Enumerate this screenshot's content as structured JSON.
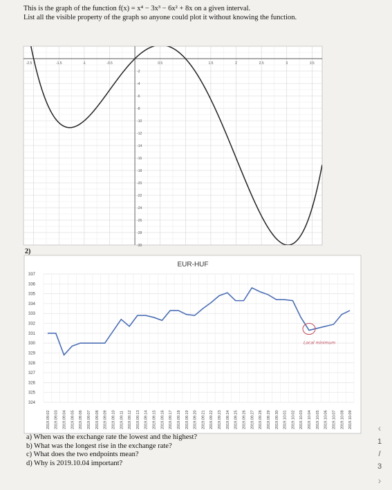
{
  "intro": {
    "line1": "This is the graph of the function f(x) = x⁴ − 3x³ − 6x² + 8x on a given interval.",
    "line2": "List all the visible property of the graph so anyone could plot it without knowing the function."
  },
  "question_number": "2)",
  "questions": [
    "a) When was the exchange rate the lowest and the highest?",
    "b) What was the longest rise in the exchange rate?",
    "c) What does the two endpoints mean?",
    "d) Why is 2019.10.04 important?"
  ],
  "page_nav": {
    "current": "1",
    "separator": "/",
    "total": "3"
  },
  "chart_data": [
    {
      "type": "line",
      "title": "",
      "function": "x^4 - 3x^3 - 6x^2 + 8x",
      "x_range": [
        -2.2,
        3.7
      ],
      "y_range": [
        -30,
        2
      ],
      "x_ticks": [
        "-2.5",
        "-1.5",
        "-1",
        "-0.5",
        "0.5",
        "1.5",
        "2",
        "2.5",
        "3",
        "3.5"
      ],
      "y_ticks": [
        "-2",
        "-4",
        "-6",
        "-8",
        "-10",
        "-12",
        "-14",
        "-16",
        "-18",
        "-20",
        "-22",
        "-24",
        "-26",
        "-28",
        "-30"
      ],
      "grid": true
    },
    {
      "type": "line",
      "title": "EUR-HUF",
      "ylim": [
        324,
        337
      ],
      "y_ticks": [
        324,
        325,
        326,
        327,
        328,
        329,
        330,
        331,
        332,
        333,
        334,
        335,
        336,
        337
      ],
      "categories": [
        "2019.09.02",
        "2019.09.03",
        "2019.09.04",
        "2019.09.05",
        "2019.09.06",
        "2019.09.07",
        "2019.09.08",
        "2019.09.09",
        "2019.09.10",
        "2019.09.11",
        "2019.09.12",
        "2019.09.13",
        "2019.09.14",
        "2019.09.15",
        "2019.09.16",
        "2019.09.17",
        "2019.09.18",
        "2019.09.19",
        "2019.09.20",
        "2019.09.21",
        "2019.09.22",
        "2019.09.23",
        "2019.09.24",
        "2019.09.25",
        "2019.09.26",
        "2019.09.27",
        "2019.09.28",
        "2019.09.29",
        "2019.09.30",
        "2019.10.01",
        "2019.10.02",
        "2019.10.03",
        "2019.10.04",
        "2019.10.05",
        "2019.10.06",
        "2019.10.07",
        "2019.10.08",
        "2019.10.09"
      ],
      "values": [
        331.0,
        331.0,
        328.8,
        329.7,
        330.0,
        330.0,
        330.0,
        330.0,
        331.2,
        332.4,
        331.7,
        332.8,
        332.8,
        332.6,
        332.3,
        333.3,
        333.3,
        332.9,
        332.8,
        333.5,
        334.1,
        334.8,
        335.1,
        334.3,
        334.3,
        335.6,
        335.2,
        334.9,
        334.4,
        334.4,
        334.3,
        332.6,
        331.3,
        331.5,
        331.7,
        331.9,
        332.9,
        333.3
      ],
      "grid": true,
      "annotation": {
        "text": "Local minimum",
        "category": "2019.10.04"
      }
    }
  ]
}
